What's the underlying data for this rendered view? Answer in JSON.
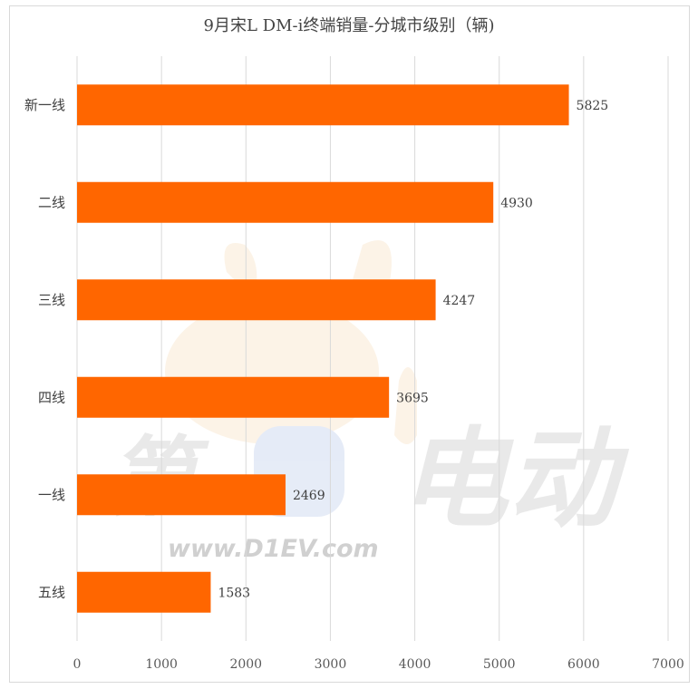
{
  "chart_data": {
    "type": "bar",
    "orientation": "horizontal",
    "title": "9月宋L DM-i终端销量-分城市级别（辆)",
    "categories": [
      "新一线",
      "二线",
      "三线",
      "四线",
      "一线",
      "五线"
    ],
    "values": [
      5825,
      4930,
      4247,
      3695,
      2469,
      1583
    ],
    "xlim": [
      0,
      7000
    ],
    "xticks": [
      0,
      1000,
      2000,
      3000,
      4000,
      5000,
      6000,
      7000
    ],
    "grid": true,
    "bar_color": "#FF6600",
    "data_labels": true
  },
  "watermark": {
    "text": "www.D1EV.com",
    "brand_left": "第",
    "brand_right": "电动"
  }
}
